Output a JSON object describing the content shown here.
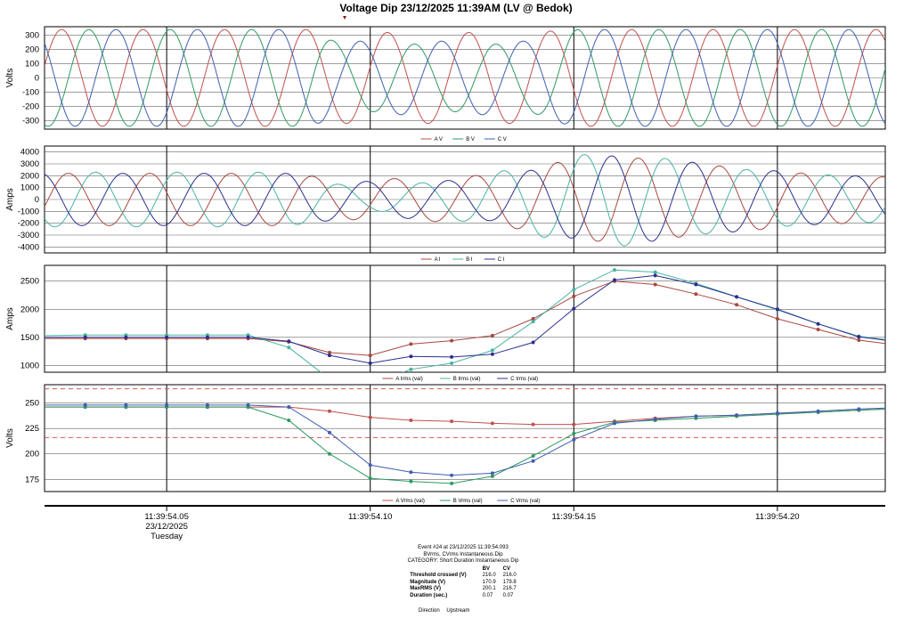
{
  "title": "Voltage Dip 23/12/2025 11:39AM (LV @ Bedok)",
  "x_axis": {
    "ticks": [
      {
        "time": 54.05,
        "label": "11:39:54.05",
        "sub1": "23/12/2025",
        "sub2": "Tuesday"
      },
      {
        "time": 54.1,
        "label": "11:39:54.10",
        "sub1": "",
        "sub2": ""
      },
      {
        "time": 54.15,
        "label": "11:39:54.15",
        "sub1": "",
        "sub2": ""
      },
      {
        "time": 54.2,
        "label": "11:39:54.20",
        "sub1": "",
        "sub2": ""
      }
    ],
    "range": [
      54.02,
      54.2265
    ]
  },
  "colors": {
    "A": "#c0504d",
    "B": "#2e9a62",
    "C": "#3f5fb0",
    "Ai": "#a8473f",
    "Bi": "#48b3a3",
    "Ci": "#2b2f8e",
    "threshold": "#d9534f"
  },
  "chart_data": [
    {
      "type": "line",
      "name": "voltage-waveform",
      "ylabel": "Volts",
      "ylim": [
        -360,
        360
      ],
      "yticks": [
        300,
        200,
        100,
        0,
        -100,
        -200,
        -300
      ],
      "grid": true,
      "legend": [
        "A V",
        "B V",
        "C V"
      ],
      "frequency_hz": 50,
      "series": [
        {
          "name": "A V",
          "phase_deg": 0
        },
        {
          "name": "B V",
          "phase_deg": -120
        },
        {
          "name": "C V",
          "phase_deg": 120
        }
      ],
      "dip": {
        "start": 54.084,
        "end": 54.152,
        "A_amplitude_pct": 94,
        "B_amplitude_pct": 70,
        "C_amplitude_pct": 76
      },
      "nominal_amplitude": 340
    },
    {
      "type": "line",
      "name": "current-waveform",
      "ylabel": "Amps",
      "ylim": [
        -4500,
        4500
      ],
      "yticks": [
        4000,
        3000,
        2000,
        1000,
        0,
        -1000,
        -2000,
        -3000,
        -4000
      ],
      "grid": true,
      "legend": [
        "A I",
        "B I",
        "C I"
      ],
      "frequency_hz": 50,
      "series": [
        {
          "name": "A I",
          "phase_deg": -30
        },
        {
          "name": "B I",
          "phase_deg": -150
        },
        {
          "name": "C I",
          "phase_deg": 90
        }
      ],
      "envelope": {
        "time": [
          54.02,
          54.08,
          54.092,
          54.1,
          54.11,
          54.12,
          54.13,
          54.14,
          54.15,
          54.16,
          54.17,
          54.18,
          54.19,
          54.2,
          54.21,
          54.2265
        ],
        "A": [
          2200,
          2200,
          1700,
          1700,
          1800,
          1900,
          2100,
          2700,
          3400,
          3600,
          3400,
          3000,
          2700,
          2400,
          2100,
          1900
        ],
        "B": [
          2300,
          2300,
          1300,
          900,
          1300,
          1700,
          2200,
          3000,
          3700,
          4000,
          3600,
          3000,
          2600,
          2300,
          2100,
          1900
        ],
        "C": [
          2200,
          2200,
          1700,
          1500,
          1600,
          1600,
          1800,
          2500,
          3300,
          3700,
          3500,
          3100,
          2700,
          2400,
          2100,
          1900
        ]
      }
    },
    {
      "type": "line",
      "name": "current-rms",
      "ylabel": "Amps",
      "ylim": [
        880,
        2780
      ],
      "yticks": [
        2500,
        2000,
        1500,
        1000
      ],
      "grid": true,
      "legend": [
        "A Irms (val)",
        "B Irms (val)",
        "C Irms (val)"
      ],
      "x": [
        54.02,
        54.03,
        54.04,
        54.05,
        54.06,
        54.07,
        54.08,
        54.09,
        54.1,
        54.11,
        54.12,
        54.13,
        54.14,
        54.15,
        54.16,
        54.17,
        54.18,
        54.19,
        54.2,
        54.21,
        54.22
      ],
      "series": [
        {
          "name": "A Irms (val)",
          "values": [
            1480,
            1480,
            1480,
            1480,
            1480,
            1480,
            1420,
            1230,
            1180,
            1380,
            1440,
            1530,
            1830,
            2230,
            2500,
            2440,
            2270,
            2080,
            1830,
            1640,
            1450
          ]
        },
        {
          "name": "B Irms (val)",
          "values": [
            1530,
            1540,
            1540,
            1540,
            1540,
            1540,
            1320,
            760,
            660,
            930,
            1040,
            1270,
            1780,
            2350,
            2700,
            2660,
            2460,
            2220,
            1990,
            1740,
            1520
          ]
        },
        {
          "name": "C Irms (val)",
          "values": [
            1500,
            1500,
            1500,
            1500,
            1500,
            1500,
            1430,
            1180,
            1040,
            1160,
            1150,
            1200,
            1410,
            2010,
            2520,
            2600,
            2440,
            2220,
            2000,
            1740,
            1510
          ]
        }
      ]
    },
    {
      "type": "line",
      "name": "voltage-rms",
      "ylabel": "Volts",
      "ylim": [
        163,
        268
      ],
      "yticks": [
        250,
        225,
        200,
        175
      ],
      "grid": true,
      "legend": [
        "A Vrms (val)",
        "B Vrms (val)",
        "C Vrms (val)"
      ],
      "thresholds": [
        264,
        216
      ],
      "x": [
        54.02,
        54.03,
        54.04,
        54.05,
        54.06,
        54.07,
        54.08,
        54.09,
        54.1,
        54.11,
        54.12,
        54.13,
        54.14,
        54.15,
        54.16,
        54.17,
        54.18,
        54.19,
        54.2,
        54.21,
        54.22
      ],
      "series": [
        {
          "name": "A Vrms (val)",
          "values": [
            246,
            246,
            246,
            246,
            246,
            246,
            246,
            242,
            236,
            233,
            232,
            230,
            229,
            229,
            232,
            235,
            237,
            238,
            240,
            241,
            243
          ]
        },
        {
          "name": "B Vrms (val)",
          "values": [
            246,
            246,
            246,
            246,
            246,
            246,
            233,
            200,
            176,
            173,
            171,
            178,
            198,
            220,
            231,
            233,
            235,
            237,
            239,
            241,
            243
          ]
        },
        {
          "name": "C Vrms (val)",
          "values": [
            248,
            248,
            248,
            248,
            248,
            248,
            246,
            221,
            189,
            182,
            179,
            181,
            193,
            214,
            230,
            234,
            237,
            238,
            240,
            242,
            244
          ]
        }
      ]
    }
  ],
  "event": {
    "line1": "Event #24 at 23/12/2025 11:39:54.093",
    "line2": "BVrms, CVrms Instantaneous Dip",
    "line3": "CATEGORY: Short Duration Instantaneous Dip",
    "columns": [
      "BV",
      "CV"
    ],
    "rows": [
      {
        "label": "Threshold crossed (V)",
        "bv": "216.0",
        "cv": "216.0"
      },
      {
        "label": "Magnitude (V)",
        "bv": "170.9",
        "cv": "179.8"
      },
      {
        "label": "MaxRMS (V)",
        "bv": "200.1",
        "cv": "216.7"
      },
      {
        "label": "Duration (sec.)",
        "bv": "0.07",
        "cv": "0.07"
      }
    ],
    "direction_label": "Direction",
    "direction_value": "Upstream"
  }
}
